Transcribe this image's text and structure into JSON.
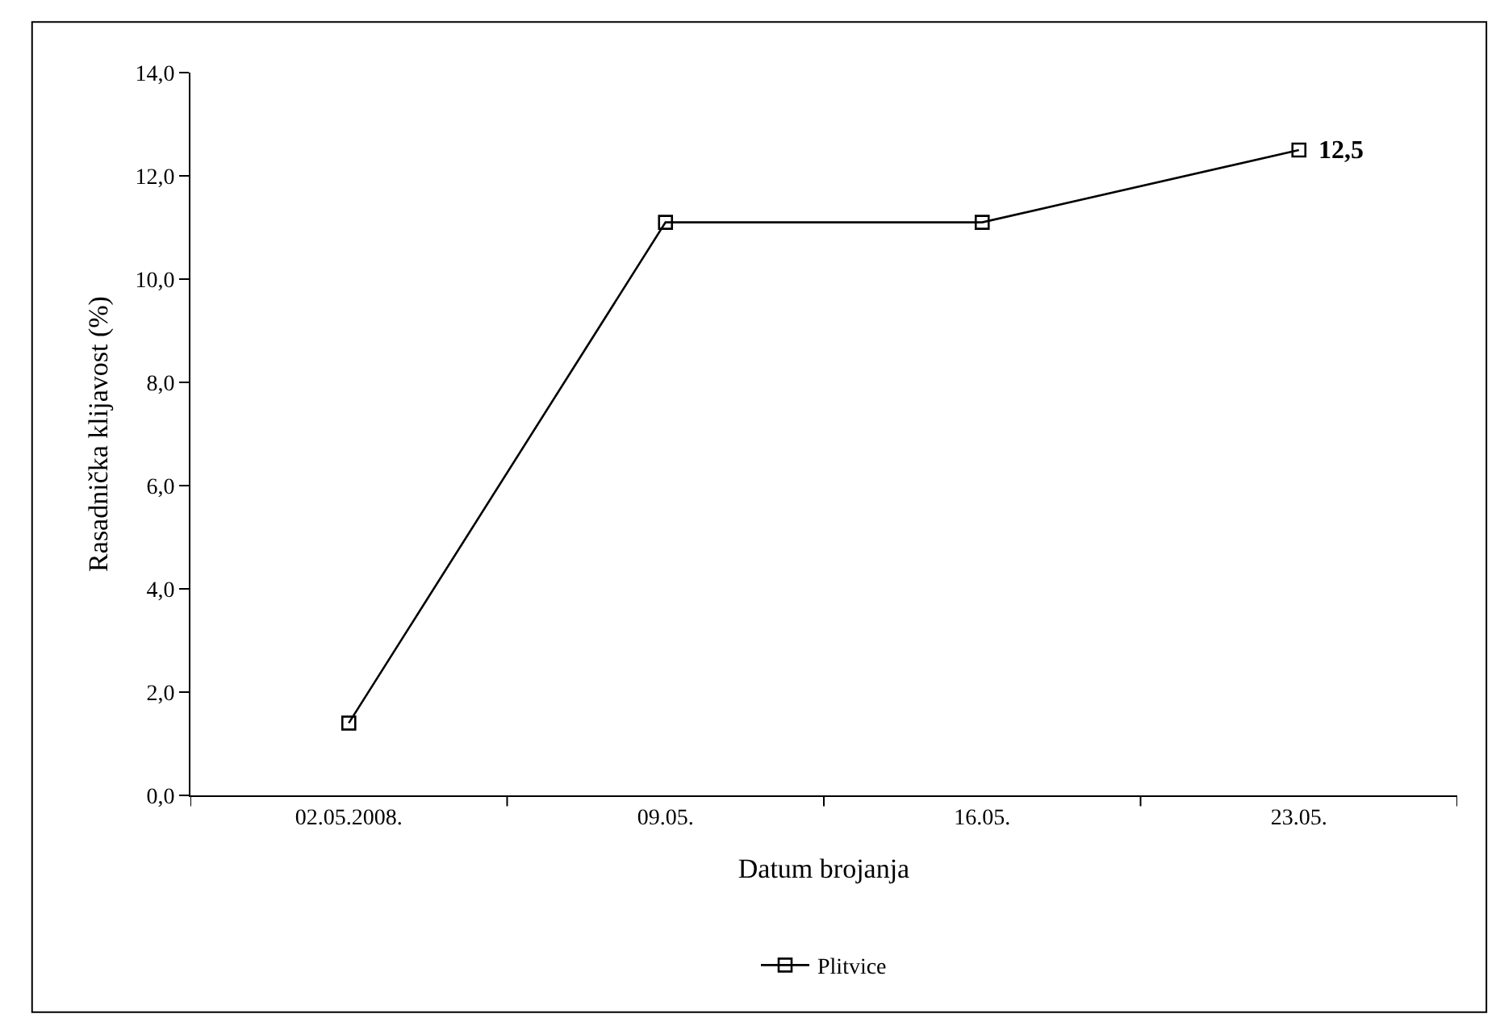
{
  "chart_data": {
    "type": "line",
    "xlabel": "Datum brojanja",
    "ylabel": "Rasadnička klijavost (%)",
    "categories": [
      "02.05.2008.",
      "09.05.",
      "16.05.",
      "23.05."
    ],
    "series": [
      {
        "name": "Plitvice",
        "color": "#000000",
        "values": [
          1.4,
          11.1,
          11.1,
          12.5
        ]
      }
    ],
    "ylim": [
      0,
      14
    ],
    "yticks": [
      {
        "value": 0,
        "label": "0,0"
      },
      {
        "value": 2,
        "label": "2,0"
      },
      {
        "value": 4,
        "label": "4,0"
      },
      {
        "value": 6,
        "label": "6,0"
      },
      {
        "value": 8,
        "label": "8,0"
      },
      {
        "value": 10,
        "label": "10,0"
      },
      {
        "value": 12,
        "label": "12,0"
      },
      {
        "value": 14,
        "label": "14,0"
      }
    ],
    "annotations": [
      {
        "text": "12,5",
        "x": "23.05.",
        "y": 12.5
      }
    ],
    "marker": "square",
    "line_style": "solid",
    "legend": "bottom"
  }
}
